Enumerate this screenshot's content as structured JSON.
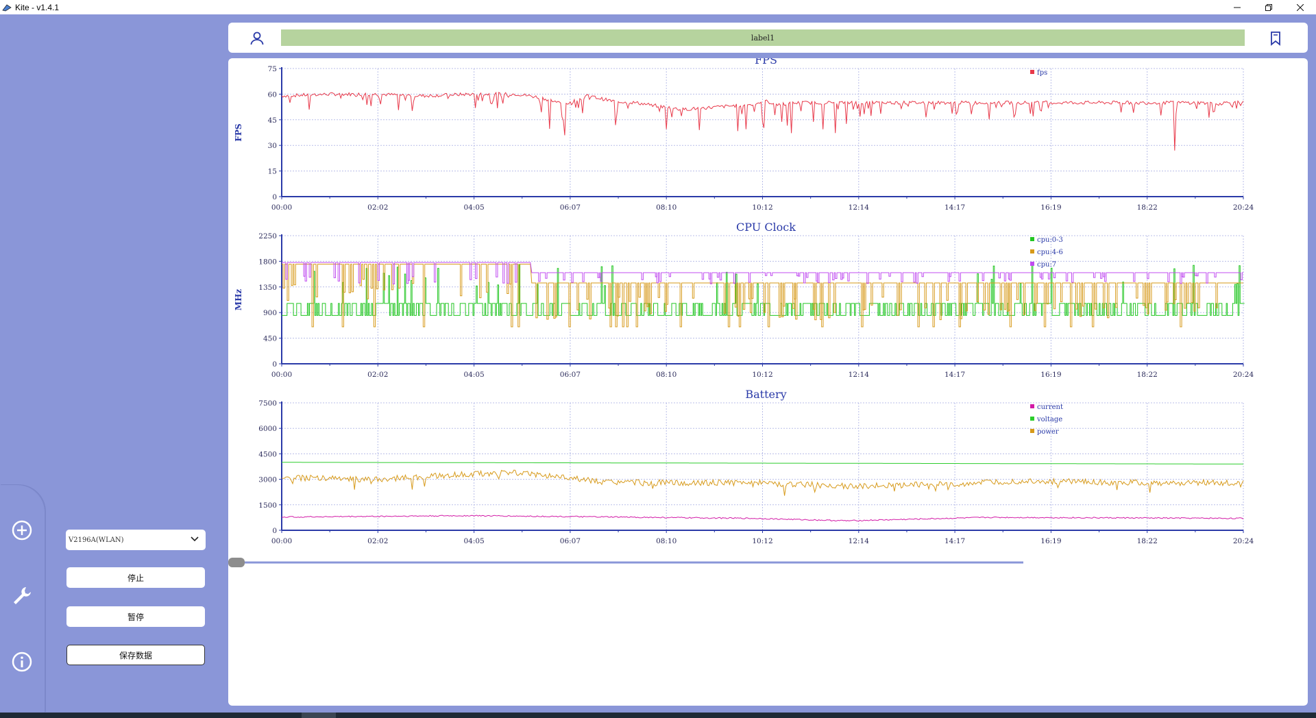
{
  "window": {
    "title": "Kite - v1.4.1",
    "controls": [
      "minimize-icon",
      "restore-icon",
      "close-icon"
    ]
  },
  "header": {
    "label": "label1",
    "left_icon": "user-icon",
    "right_icon": "bookmark-icon"
  },
  "sidebar": {
    "rail_icons": [
      "add-circle-icon",
      "wrench-icon",
      "info-icon"
    ],
    "device_select": {
      "value": "V2196A(WLAN)"
    },
    "buttons": {
      "stop": "停止",
      "pause": "暂停",
      "save": "保存数据"
    }
  },
  "colors": {
    "background": "#8a96d8",
    "label_bar": "#b6d39e",
    "axis": "#2a3aa8",
    "fps": "#e8394a",
    "cpu_0_3": "#22c622",
    "cpu_4_6": "#d79a1a",
    "cpu_7": "#c04cf0",
    "current": "#d21aa6",
    "voltage": "#2ccd2c",
    "power": "#d79a1a"
  },
  "chart_data": [
    {
      "type": "line",
      "title": "FPS",
      "ylabel": "FPS",
      "xlabel": "",
      "ylim": [
        0,
        75
      ],
      "yticks": [
        0,
        15,
        30,
        45,
        60,
        75
      ],
      "xticks": [
        "00:00",
        "02:02",
        "04:05",
        "06:07",
        "08:10",
        "10:12",
        "12:14",
        "14:17",
        "16:19",
        "18:22",
        "20:24"
      ],
      "grid": true,
      "legend_position": "top-right",
      "series": [
        {
          "name": "fps",
          "color": "#e8394a",
          "x": [
            0,
            60,
            120,
            180,
            240,
            300,
            330,
            360,
            390,
            420,
            450,
            480,
            510,
            540,
            570,
            600,
            615,
            630,
            660,
            690,
            720,
            750,
            780,
            810,
            840,
            870,
            900,
            930,
            960,
            990,
            1020,
            1050,
            1080,
            1110,
            1140,
            1170,
            1190,
            1200,
            1224
          ],
          "y": [
            59,
            60,
            60,
            59,
            60,
            60,
            58,
            54,
            59,
            56,
            55,
            53,
            51,
            52,
            53,
            54,
            56,
            54,
            55,
            55,
            55,
            55,
            55,
            55,
            55,
            55,
            55,
            55,
            55,
            55,
            55,
            55,
            55,
            55,
            55,
            55,
            54,
            55,
            55
          ]
        }
      ]
    },
    {
      "type": "line",
      "title": "CPU Clock",
      "ylabel": "MHz",
      "xlabel": "",
      "ylim": [
        0,
        2250
      ],
      "yticks": [
        0,
        450,
        900,
        1350,
        1800,
        2250
      ],
      "xticks": [
        "00:00",
        "02:02",
        "04:05",
        "06:07",
        "08:10",
        "10:12",
        "12:14",
        "14:17",
        "16:19",
        "18:22",
        "20:24"
      ],
      "grid": true,
      "legend_position": "top-right",
      "series": [
        {
          "name": "cpu:0-3",
          "color": "#22c622",
          "x": [
            0,
            1224
          ],
          "y_low": 850,
          "y_high": 1060,
          "y_peak": 1750
        },
        {
          "name": "cpu:4-6",
          "color": "#d79a1a",
          "x": [
            0,
            315,
            320,
            1224
          ],
          "y": [
            1750,
            1750,
            1420,
            1420
          ],
          "y_dips_to": 650
        },
        {
          "name": "cpu:7",
          "color": "#c04cf0",
          "x": [
            0,
            315,
            320,
            1224
          ],
          "y": [
            1780,
            1780,
            1600,
            1600
          ],
          "y_dips_to": 1400
        }
      ]
    },
    {
      "type": "line",
      "title": "Battery",
      "ylabel": "",
      "xlabel": "",
      "ylim": [
        0,
        7500
      ],
      "yticks": [
        0,
        1500,
        3000,
        4500,
        6000,
        7500
      ],
      "xticks": [
        "00:00",
        "02:02",
        "04:05",
        "06:07",
        "08:10",
        "10:12",
        "12:14",
        "14:17",
        "16:19",
        "18:22",
        "20:24"
      ],
      "grid": true,
      "legend_position": "top-right",
      "series": [
        {
          "name": "current",
          "color": "#d21aa6",
          "x": [
            0,
            240,
            600,
            720,
            900,
            1224
          ],
          "y": [
            780,
            860,
            700,
            560,
            760,
            700
          ]
        },
        {
          "name": "voltage",
          "color": "#2ccd2c",
          "x": [
            0,
            1224
          ],
          "y": [
            4000,
            3900
          ]
        },
        {
          "name": "power",
          "color": "#d79a1a",
          "x": [
            0,
            120,
            240,
            300,
            420,
            600,
            720,
            840,
            960,
            1080,
            1224
          ],
          "y": [
            3100,
            3000,
            3300,
            3400,
            2800,
            2800,
            2600,
            2700,
            2900,
            2800,
            2800
          ]
        }
      ]
    }
  ],
  "timeline_slider": {
    "position": 0
  }
}
